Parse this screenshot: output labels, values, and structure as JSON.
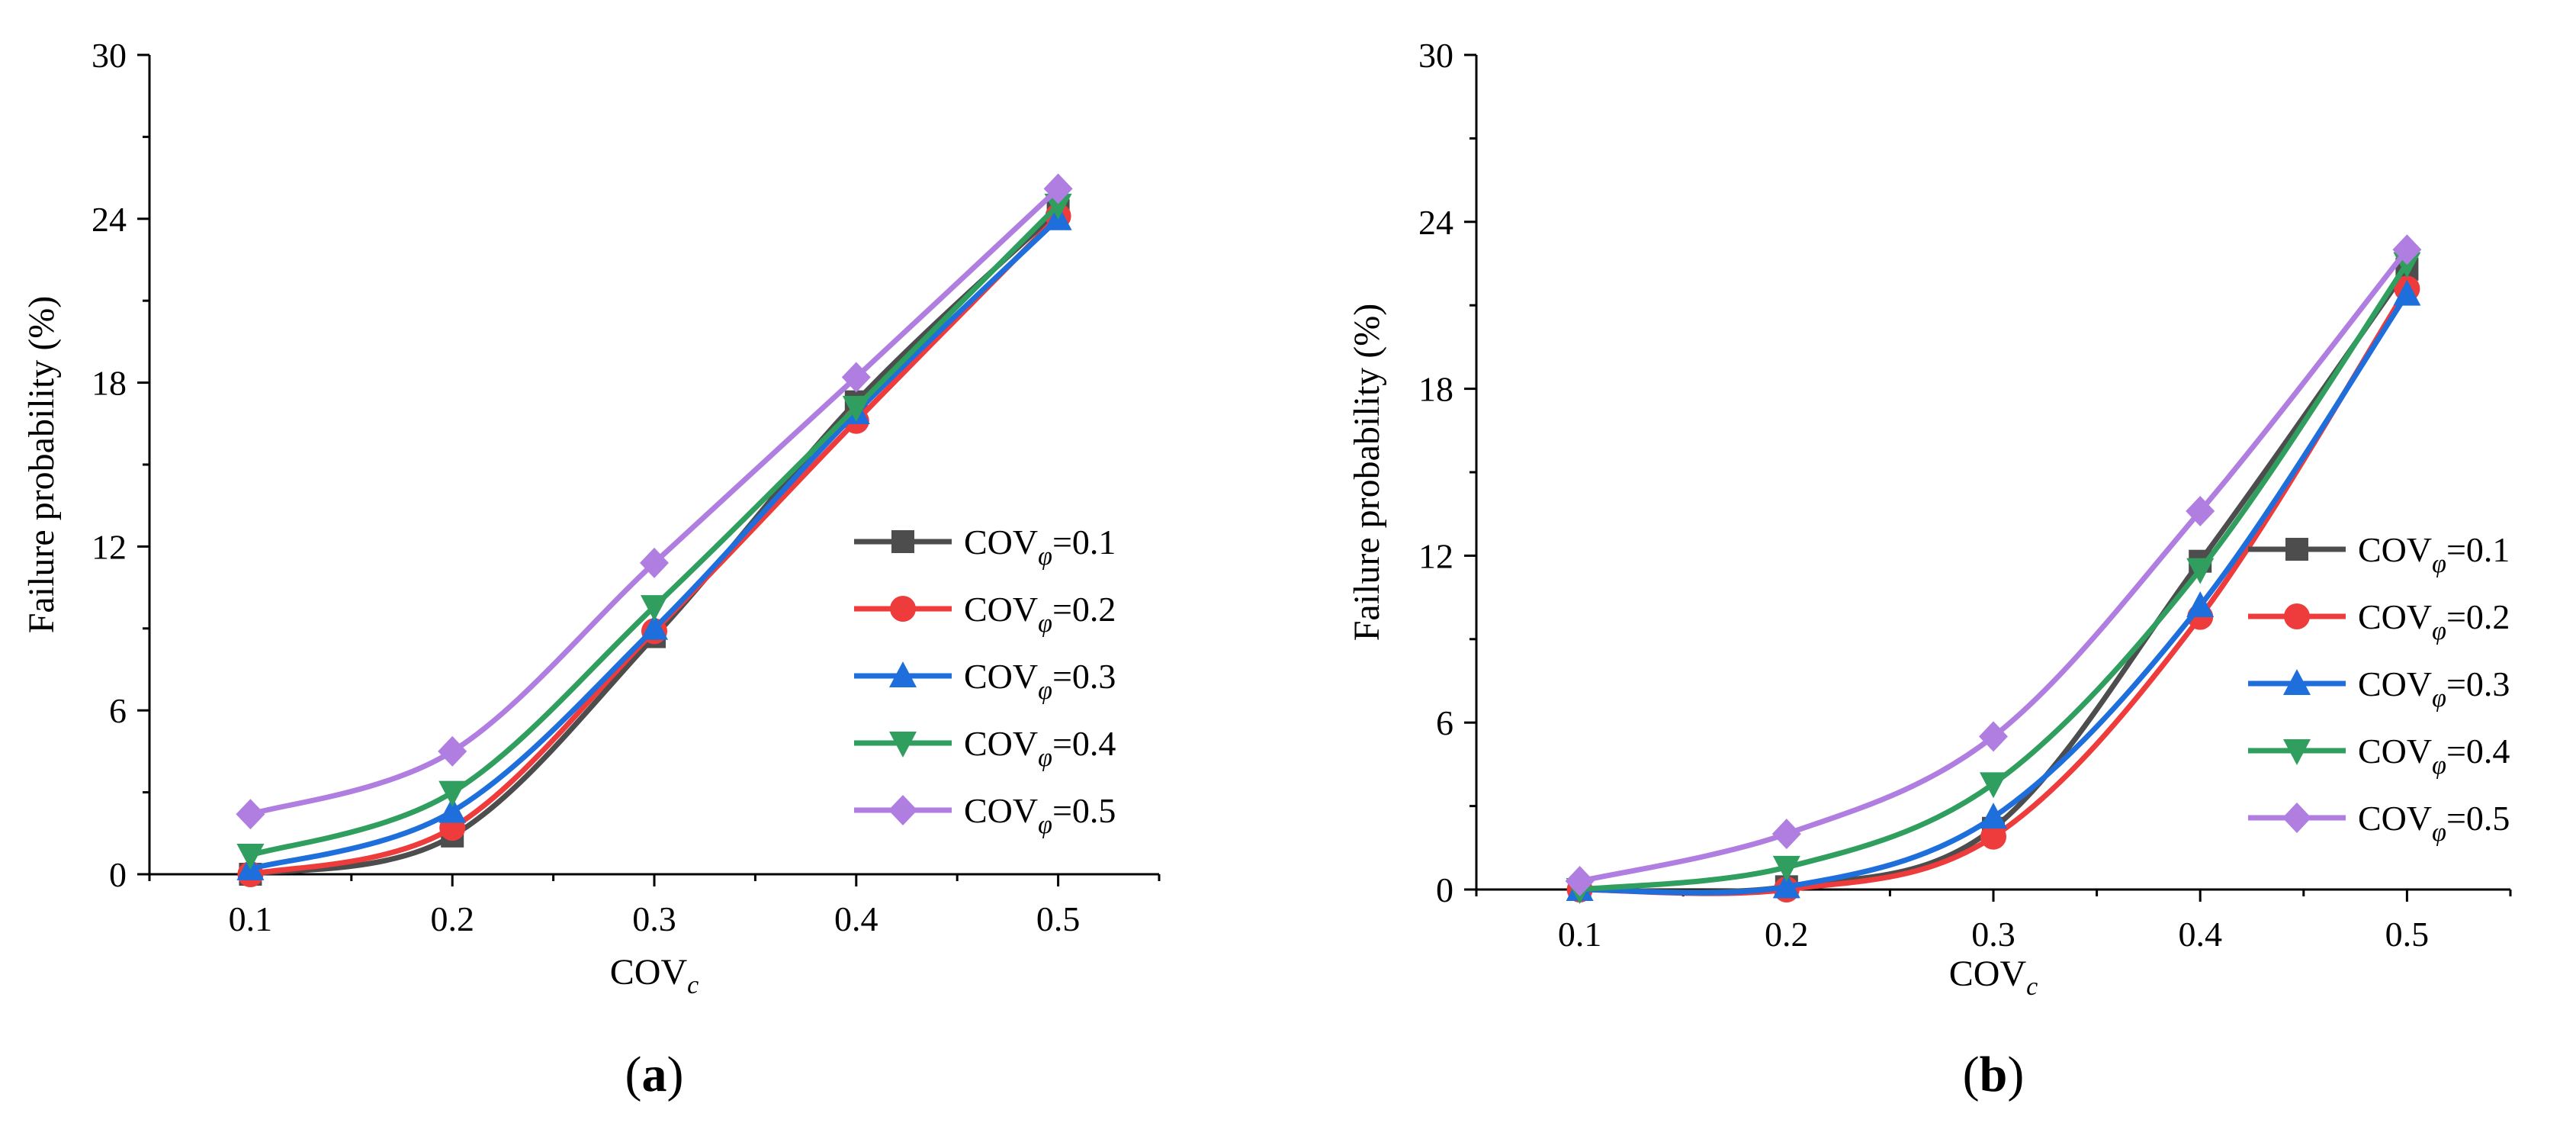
{
  "chart_data": [
    {
      "type": "line",
      "panel_label": "a",
      "title": "",
      "xlabel": "COV",
      "xlabel_sub": "c",
      "ylabel": "Failure probability (%)",
      "categories": [
        "0.1",
        "0.2",
        "0.3",
        "0.4",
        "0.5"
      ],
      "x": [
        0.1,
        0.2,
        0.3,
        0.4,
        0.5
      ],
      "xlim": [
        0.05,
        0.55
      ],
      "ylim": [
        0,
        30
      ],
      "yticks": [
        0,
        6,
        12,
        18,
        24,
        30
      ],
      "yticklabels": [
        "0",
        "6",
        "12",
        "18",
        "24",
        "30"
      ],
      "grid": false,
      "legend_position": "center-right",
      "series": [
        {
          "name": "COV",
          "sub": "φ",
          "suffix": "=0.1",
          "color": "#4d4d4d",
          "marker": "square",
          "values": [
            0.0,
            1.4,
            8.7,
            17.3,
            24.3
          ]
        },
        {
          "name": "COV",
          "sub": "φ",
          "suffix": "=0.2",
          "color": "#ee3b3b",
          "marker": "circle",
          "values": [
            0.0,
            1.7,
            8.9,
            16.6,
            24.1
          ]
        },
        {
          "name": "COV",
          "sub": "φ",
          "suffix": "=0.3",
          "color": "#1e6fdc",
          "marker": "triangle-up",
          "values": [
            0.2,
            2.3,
            9.0,
            16.9,
            24.0
          ]
        },
        {
          "name": "COV",
          "sub": "φ",
          "suffix": "=0.4",
          "color": "#2f9e5e",
          "marker": "triangle-down",
          "values": [
            0.7,
            3.0,
            9.8,
            17.1,
            24.5
          ]
        },
        {
          "name": "COV",
          "sub": "φ",
          "suffix": "=0.5",
          "color": "#b07ee0",
          "marker": "diamond",
          "values": [
            2.2,
            4.5,
            11.4,
            18.2,
            25.1
          ]
        }
      ]
    },
    {
      "type": "line",
      "panel_label": "b",
      "title": "",
      "xlabel": "COV",
      "xlabel_sub": "c",
      "ylabel": "Failure probability (%)",
      "categories": [
        "0.1",
        "0.2",
        "0.3",
        "0.4",
        "0.5"
      ],
      "x": [
        0.1,
        0.2,
        0.3,
        0.4,
        0.5
      ],
      "xlim": [
        0.05,
        0.55
      ],
      "ylim": [
        0,
        30
      ],
      "yticks": [
        0,
        6,
        12,
        18,
        24,
        30
      ],
      "yticklabels": [
        "0",
        "6",
        "12",
        "18",
        "24",
        "30"
      ],
      "grid": false,
      "legend_position": "center-right",
      "series": [
        {
          "name": "COV",
          "sub": "φ",
          "suffix": "=0.1",
          "color": "#4d4d4d",
          "marker": "square",
          "values": [
            0.0,
            0.1,
            2.2,
            11.8,
            22.3
          ]
        },
        {
          "name": "COV",
          "sub": "φ",
          "suffix": "=0.2",
          "color": "#ee3b3b",
          "marker": "circle",
          "values": [
            0.0,
            0.0,
            1.9,
            9.8,
            21.6
          ]
        },
        {
          "name": "COV",
          "sub": "φ",
          "suffix": "=0.3",
          "color": "#1e6fdc",
          "marker": "triangle-up",
          "values": [
            0.0,
            0.1,
            2.6,
            10.2,
            21.4
          ]
        },
        {
          "name": "COV",
          "sub": "φ",
          "suffix": "=0.4",
          "color": "#2f9e5e",
          "marker": "triangle-down",
          "values": [
            0.0,
            0.8,
            3.8,
            11.5,
            22.5
          ]
        },
        {
          "name": "COV",
          "sub": "φ",
          "suffix": "=0.5",
          "color": "#b07ee0",
          "marker": "diamond",
          "values": [
            0.3,
            2.0,
            5.5,
            13.6,
            23.0
          ]
        }
      ]
    }
  ]
}
